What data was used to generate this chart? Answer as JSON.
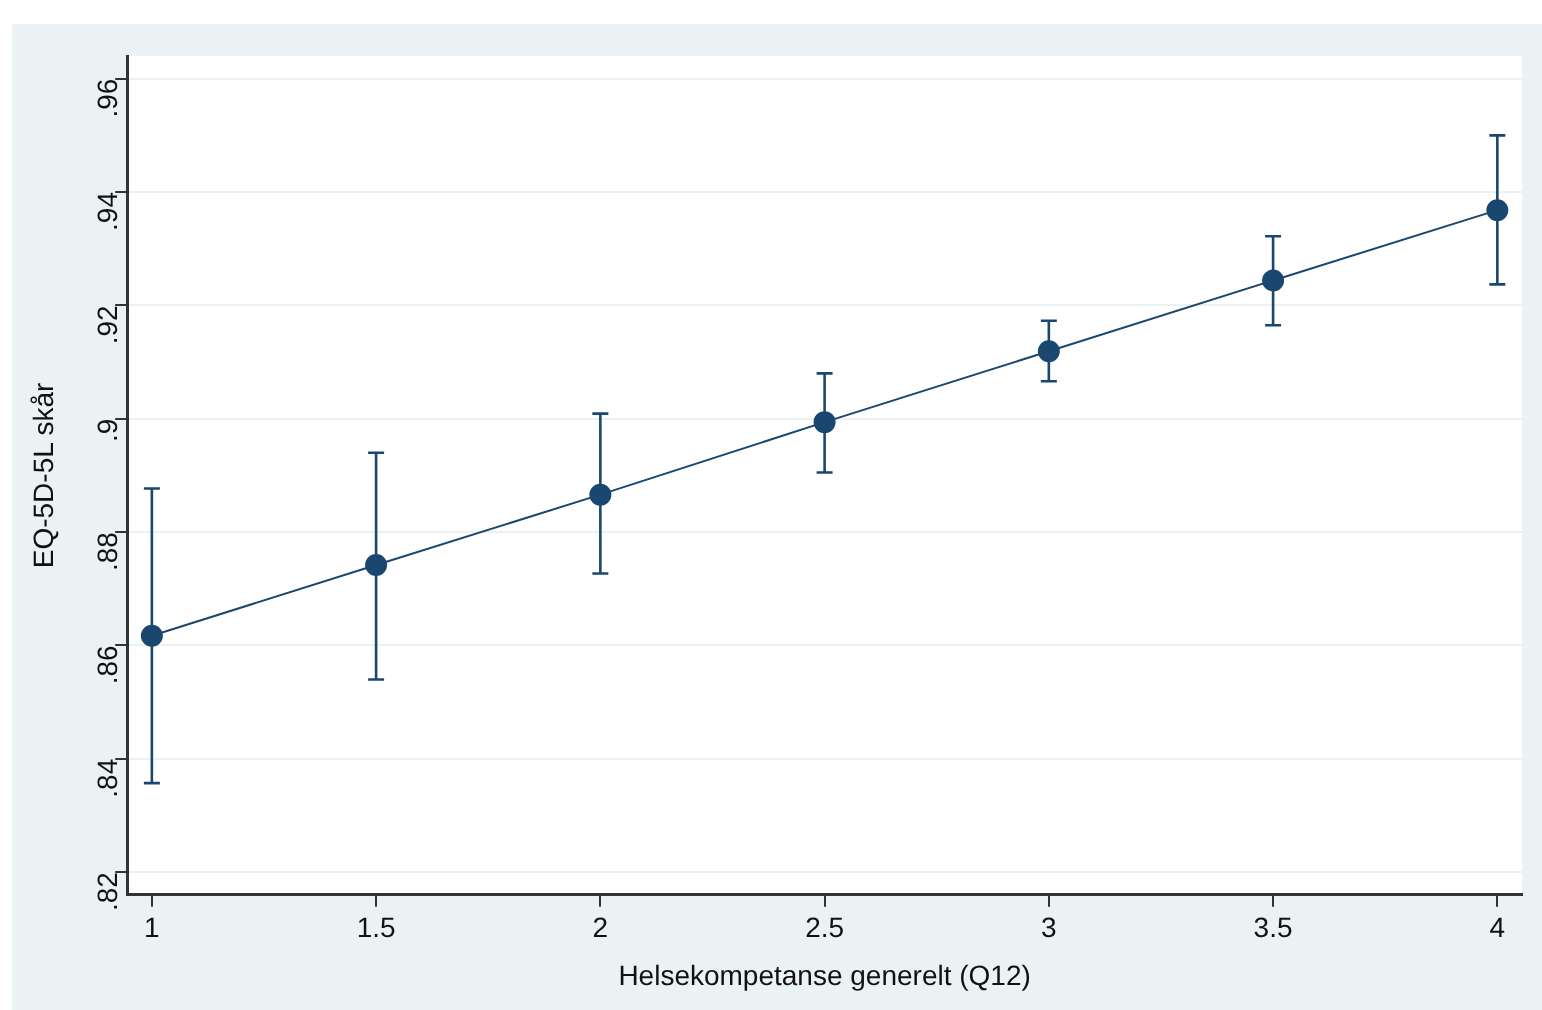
{
  "chart_data": {
    "type": "line",
    "xlabel": "Helsekompetanse generelt (Q12)",
    "ylabel": "EQ-5D-5L skår",
    "x": [
      1,
      1.5,
      2,
      2.5,
      3,
      3.5,
      4
    ],
    "series": [
      {
        "color": "#1a476f",
        "values": [
          0.8617,
          0.8742,
          0.8866,
          0.8994,
          0.9119,
          0.9244,
          0.9368
        ],
        "errors": [
          [
            0.8357,
            0.8877
          ],
          [
            0.854,
            0.894
          ],
          [
            0.8727,
            0.9009
          ],
          [
            0.8905,
            0.908
          ],
          [
            0.9066,
            0.9173
          ],
          [
            0.9165,
            0.9322
          ],
          [
            0.9237,
            0.95
          ]
        ]
      }
    ],
    "xlim": [
      0.945,
      4.055
    ],
    "xticks": [
      1,
      1.5,
      2,
      2.5,
      3,
      3.5,
      4
    ],
    "ylim": [
      0.816,
      0.964
    ],
    "yticks": [
      {
        "value": 0.82,
        "label": ".82"
      },
      {
        "value": 0.84,
        "label": ".84"
      },
      {
        "value": 0.86,
        "label": ".86"
      },
      {
        "value": 0.88,
        "label": ".88"
      },
      {
        "value": 0.9,
        "label": ".9"
      },
      {
        "value": 0.92,
        "label": ".92"
      },
      {
        "value": 0.94,
        "label": ".94"
      },
      {
        "value": 0.96,
        "label": ".96"
      }
    ],
    "grid": "y",
    "marker": "circle",
    "line_style": "solid",
    "legend": false
  }
}
